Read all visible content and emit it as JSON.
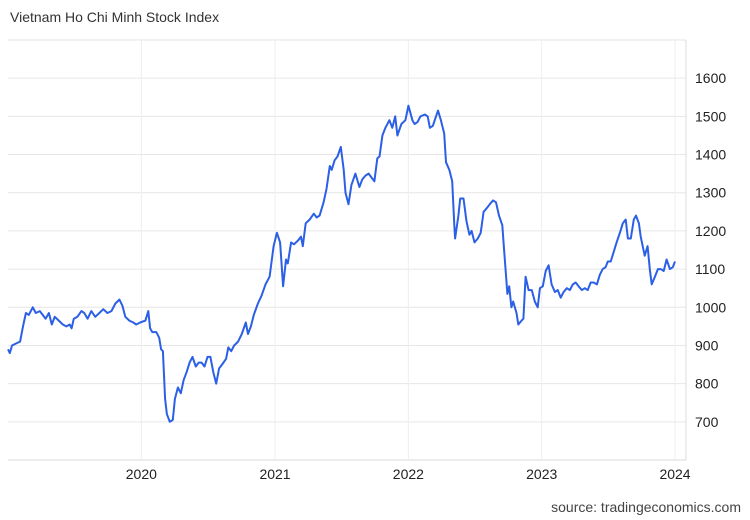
{
  "chart_data": {
    "type": "line",
    "title": "Vietnam Ho Chi Minh Stock Index",
    "source": "source: tradingeconomics.com",
    "xlabel": "",
    "ylabel": "",
    "xlim": [
      "2019-01-01",
      "2024-01-31"
    ],
    "ylim": [
      600,
      1700
    ],
    "y_ticks": [
      "700",
      "800",
      "900",
      "1000",
      "1100",
      "1200",
      "1300",
      "1400",
      "1500",
      "1600"
    ],
    "x_ticks": [
      "2020",
      "2021",
      "2022",
      "2023",
      "2024"
    ],
    "y_axis_side": "right",
    "grid": true,
    "legend": "none",
    "colors": {
      "line": "#2b5fe6",
      "grid": "#e6e6e6",
      "text": "#333333"
    },
    "series": [
      {
        "points": [
          [
            "2019-01-01",
            890
          ],
          [
            "2019-01-06",
            880
          ],
          [
            "2019-01-12",
            900
          ],
          [
            "2019-01-23",
            905
          ],
          [
            "2019-02-03",
            910
          ],
          [
            "2019-02-11",
            950
          ],
          [
            "2019-02-19",
            985
          ],
          [
            "2019-02-27",
            980
          ],
          [
            "2019-03-10",
            1000
          ],
          [
            "2019-03-18",
            985
          ],
          [
            "2019-03-29",
            990
          ],
          [
            "2019-04-06",
            980
          ],
          [
            "2019-04-14",
            970
          ],
          [
            "2019-04-23",
            985
          ],
          [
            "2019-05-01",
            955
          ],
          [
            "2019-05-09",
            975
          ],
          [
            "2019-05-20",
            965
          ],
          [
            "2019-05-31",
            955
          ],
          [
            "2019-06-10",
            950
          ],
          [
            "2019-06-19",
            955
          ],
          [
            "2019-06-24",
            945
          ],
          [
            "2019-06-30",
            970
          ],
          [
            "2019-07-10",
            975
          ],
          [
            "2019-07-21",
            990
          ],
          [
            "2019-07-29",
            985
          ],
          [
            "2019-08-07",
            970
          ],
          [
            "2019-08-17",
            990
          ],
          [
            "2019-08-28",
            975
          ],
          [
            "2019-09-08",
            985
          ],
          [
            "2019-09-19",
            995
          ],
          [
            "2019-09-30",
            985
          ],
          [
            "2019-10-11",
            990
          ],
          [
            "2019-10-22",
            1010
          ],
          [
            "2019-11-02",
            1020
          ],
          [
            "2019-11-10",
            1005
          ],
          [
            "2019-11-18",
            975
          ],
          [
            "2019-11-29",
            965
          ],
          [
            "2019-12-10",
            960
          ],
          [
            "2019-12-18",
            955
          ],
          [
            "2019-12-29",
            960
          ],
          [
            "2020-01-12",
            965
          ],
          [
            "2020-01-20",
            990
          ],
          [
            "2020-01-25",
            945
          ],
          [
            "2020-01-31",
            935
          ],
          [
            "2020-02-11",
            935
          ],
          [
            "2020-02-19",
            920
          ],
          [
            "2020-02-24",
            890
          ],
          [
            "2020-02-29",
            885
          ],
          [
            "2020-03-06",
            760
          ],
          [
            "2020-03-11",
            720
          ],
          [
            "2020-03-19",
            700
          ],
          [
            "2020-03-27",
            705
          ],
          [
            "2020-04-02",
            760
          ],
          [
            "2020-04-10",
            790
          ],
          [
            "2020-04-18",
            775
          ],
          [
            "2020-04-26",
            810
          ],
          [
            "2020-05-04",
            830
          ],
          [
            "2020-05-12",
            855
          ],
          [
            "2020-05-20",
            870
          ],
          [
            "2020-05-29",
            845
          ],
          [
            "2020-06-06",
            855
          ],
          [
            "2020-06-14",
            855
          ],
          [
            "2020-06-22",
            845
          ],
          [
            "2020-06-30",
            870
          ],
          [
            "2020-07-08",
            870
          ],
          [
            "2020-07-16",
            830
          ],
          [
            "2020-07-24",
            800
          ],
          [
            "2020-08-01",
            840
          ],
          [
            "2020-08-09",
            850
          ],
          [
            "2020-08-20",
            865
          ],
          [
            "2020-08-26",
            895
          ],
          [
            "2020-09-03",
            885
          ],
          [
            "2020-09-11",
            900
          ],
          [
            "2020-09-22",
            910
          ],
          [
            "2020-10-02",
            930
          ],
          [
            "2020-10-13",
            960
          ],
          [
            "2020-10-19",
            930
          ],
          [
            "2020-10-27",
            950
          ],
          [
            "2020-11-04",
            980
          ],
          [
            "2020-11-15",
            1010
          ],
          [
            "2020-11-25",
            1030
          ],
          [
            "2020-12-06",
            1060
          ],
          [
            "2020-12-17",
            1080
          ],
          [
            "2020-12-28",
            1160
          ],
          [
            "2021-01-06",
            1195
          ],
          [
            "2021-01-15",
            1170
          ],
          [
            "2021-01-23",
            1055
          ],
          [
            "2021-01-31",
            1125
          ],
          [
            "2021-02-05",
            1115
          ],
          [
            "2021-02-14",
            1170
          ],
          [
            "2021-02-22",
            1165
          ],
          [
            "2021-03-05",
            1175
          ],
          [
            "2021-03-13",
            1185
          ],
          [
            "2021-03-18",
            1160
          ],
          [
            "2021-03-26",
            1220
          ],
          [
            "2021-04-06",
            1230
          ],
          [
            "2021-04-17",
            1245
          ],
          [
            "2021-04-25",
            1235
          ],
          [
            "2021-05-03",
            1240
          ],
          [
            "2021-05-14",
            1275
          ],
          [
            "2021-05-22",
            1310
          ],
          [
            "2021-05-31",
            1370
          ],
          [
            "2021-06-05",
            1360
          ],
          [
            "2021-06-13",
            1385
          ],
          [
            "2021-06-21",
            1395
          ],
          [
            "2021-06-30",
            1420
          ],
          [
            "2021-07-08",
            1360
          ],
          [
            "2021-07-13",
            1300
          ],
          [
            "2021-07-21",
            1270
          ],
          [
            "2021-07-29",
            1320
          ],
          [
            "2021-08-09",
            1350
          ],
          [
            "2021-08-20",
            1315
          ],
          [
            "2021-08-28",
            1335
          ],
          [
            "2021-09-06",
            1345
          ],
          [
            "2021-09-14",
            1350
          ],
          [
            "2021-09-22",
            1340
          ],
          [
            "2021-09-30",
            1330
          ],
          [
            "2021-10-08",
            1390
          ],
          [
            "2021-10-14",
            1395
          ],
          [
            "2021-10-22",
            1450
          ],
          [
            "2021-10-30",
            1470
          ],
          [
            "2021-11-10",
            1490
          ],
          [
            "2021-11-18",
            1470
          ],
          [
            "2021-11-26",
            1500
          ],
          [
            "2021-12-02",
            1450
          ],
          [
            "2021-12-13",
            1480
          ],
          [
            "2021-12-24",
            1490
          ],
          [
            "2022-01-01",
            1528
          ],
          [
            "2022-01-12",
            1490
          ],
          [
            "2022-01-18",
            1480
          ],
          [
            "2022-01-26",
            1485
          ],
          [
            "2022-02-03",
            1500
          ],
          [
            "2022-02-15",
            1505
          ],
          [
            "2022-02-23",
            1500
          ],
          [
            "2022-03-01",
            1470
          ],
          [
            "2022-03-09",
            1475
          ],
          [
            "2022-03-23",
            1515
          ],
          [
            "2022-03-31",
            1490
          ],
          [
            "2022-04-09",
            1455
          ],
          [
            "2022-04-14",
            1380
          ],
          [
            "2022-04-23",
            1360
          ],
          [
            "2022-05-01",
            1330
          ],
          [
            "2022-05-07",
            1210
          ],
          [
            "2022-05-09",
            1180
          ],
          [
            "2022-05-18",
            1240
          ],
          [
            "2022-05-23",
            1285
          ],
          [
            "2022-06-01",
            1285
          ],
          [
            "2022-06-09",
            1225
          ],
          [
            "2022-06-17",
            1190
          ],
          [
            "2022-06-23",
            1200
          ],
          [
            "2022-07-01",
            1170
          ],
          [
            "2022-07-10",
            1180
          ],
          [
            "2022-07-18",
            1195
          ],
          [
            "2022-07-26",
            1250
          ],
          [
            "2022-08-04",
            1260
          ],
          [
            "2022-08-12",
            1270
          ],
          [
            "2022-08-21",
            1280
          ],
          [
            "2022-08-29",
            1275
          ],
          [
            "2022-09-06",
            1240
          ],
          [
            "2022-09-15",
            1215
          ],
          [
            "2022-09-20",
            1150
          ],
          [
            "2022-09-29",
            1035
          ],
          [
            "2022-10-04",
            1055
          ],
          [
            "2022-10-10",
            1000
          ],
          [
            "2022-10-15",
            1015
          ],
          [
            "2022-10-24",
            985
          ],
          [
            "2022-10-29",
            955
          ],
          [
            "2022-11-07",
            965
          ],
          [
            "2022-11-12",
            970
          ],
          [
            "2022-11-18",
            1080
          ],
          [
            "2022-11-26",
            1045
          ],
          [
            "2022-12-05",
            1045
          ],
          [
            "2022-12-13",
            1015
          ],
          [
            "2022-12-21",
            1000
          ],
          [
            "2022-12-27",
            1050
          ],
          [
            "2023-01-04",
            1055
          ],
          [
            "2023-01-12",
            1095
          ],
          [
            "2023-01-20",
            1110
          ],
          [
            "2023-01-28",
            1060
          ],
          [
            "2023-02-06",
            1040
          ],
          [
            "2023-02-14",
            1045
          ],
          [
            "2023-02-22",
            1025
          ],
          [
            "2023-03-02",
            1040
          ],
          [
            "2023-03-11",
            1050
          ],
          [
            "2023-03-19",
            1045
          ],
          [
            "2023-03-27",
            1060
          ],
          [
            "2023-04-04",
            1065
          ],
          [
            "2023-04-12",
            1055
          ],
          [
            "2023-04-21",
            1045
          ],
          [
            "2023-04-29",
            1050
          ],
          [
            "2023-05-07",
            1045
          ],
          [
            "2023-05-15",
            1065
          ],
          [
            "2023-05-23",
            1065
          ],
          [
            "2023-06-01",
            1060
          ],
          [
            "2023-06-09",
            1085
          ],
          [
            "2023-06-17",
            1100
          ],
          [
            "2023-06-25",
            1105
          ],
          [
            "2023-07-01",
            1120
          ],
          [
            "2023-07-09",
            1120
          ],
          [
            "2023-07-17",
            1145
          ],
          [
            "2023-07-25",
            1170
          ],
          [
            "2023-08-03",
            1195
          ],
          [
            "2023-08-11",
            1220
          ],
          [
            "2023-08-19",
            1230
          ],
          [
            "2023-08-25",
            1180
          ],
          [
            "2023-09-02",
            1180
          ],
          [
            "2023-09-10",
            1230
          ],
          [
            "2023-09-16",
            1240
          ],
          [
            "2023-09-24",
            1220
          ],
          [
            "2023-09-29",
            1185
          ],
          [
            "2023-10-10",
            1135
          ],
          [
            "2023-10-18",
            1160
          ],
          [
            "2023-10-24",
            1100
          ],
          [
            "2023-10-29",
            1060
          ],
          [
            "2023-11-07",
            1080
          ],
          [
            "2023-11-15",
            1100
          ],
          [
            "2023-11-23",
            1100
          ],
          [
            "2023-12-01",
            1095
          ],
          [
            "2023-12-09",
            1125
          ],
          [
            "2023-12-18",
            1100
          ],
          [
            "2023-12-26",
            1105
          ],
          [
            "2024-01-01",
            1120
          ]
        ]
      }
    ]
  }
}
